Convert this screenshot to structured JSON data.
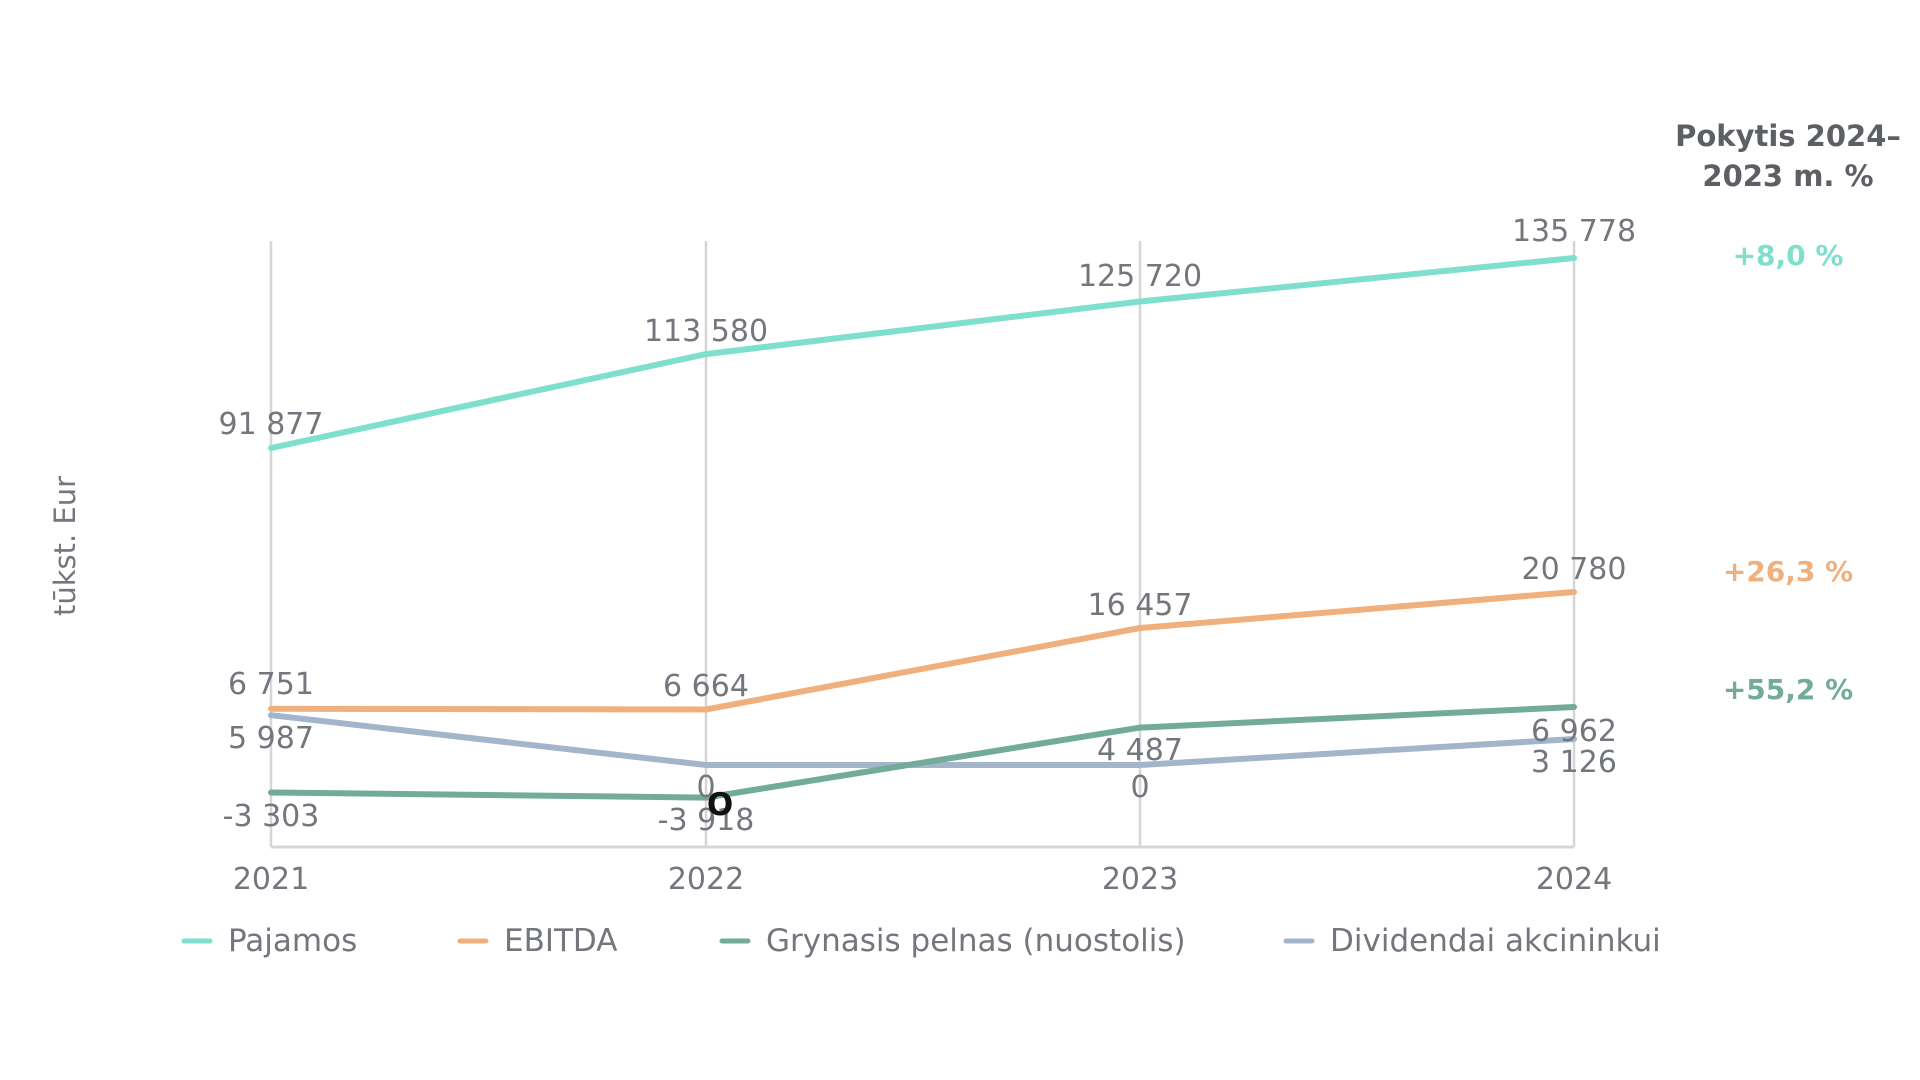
{
  "chart_data": {
    "type": "line",
    "ylabel": "tūkst. Eur",
    "categories": [
      "2021",
      "2022",
      "2023",
      "2024"
    ],
    "series": [
      {
        "name": "Pajamos",
        "values": [
          91877,
          113580,
          125720,
          135778
        ],
        "labels": [
          "91 877",
          "113 580",
          "125 720",
          "135 778"
        ],
        "color": "#7edfcd"
      },
      {
        "name": "EBITDA",
        "values": [
          6751,
          6664,
          16457,
          20780
        ],
        "labels": [
          "6 751",
          "6 664",
          "16 457",
          "20 780"
        ],
        "color": "#f0b07e"
      },
      {
        "name": "Grynasis pelnas (nuostolis)",
        "values": [
          -3303,
          -3918,
          4487,
          6962
        ],
        "labels": [
          "-3 303",
          "-3 918",
          "4 487",
          "6 962"
        ],
        "color": "#72ab98"
      },
      {
        "name": "Dividendai akcininkui",
        "values": [
          5987,
          0,
          0,
          3126
        ],
        "labels": [
          "5 987",
          "0",
          "0",
          "3 126"
        ],
        "color": "#a3b5ca"
      }
    ],
    "change_header": [
      "Pokytis 2024–",
      "2023 m. %"
    ],
    "changes": [
      {
        "series": "Pajamos",
        "text": "+8,0 %",
        "color": "#7edfcd"
      },
      {
        "series": "EBITDA",
        "text": "+26,3 %",
        "color": "#f0b07e"
      },
      {
        "series": "Grynasis pelnas (nuostolis)",
        "text": "+55,2 %",
        "color": "#72ab98"
      }
    ],
    "stray_mark": "O",
    "grid": true,
    "legend_position": "bottom"
  }
}
